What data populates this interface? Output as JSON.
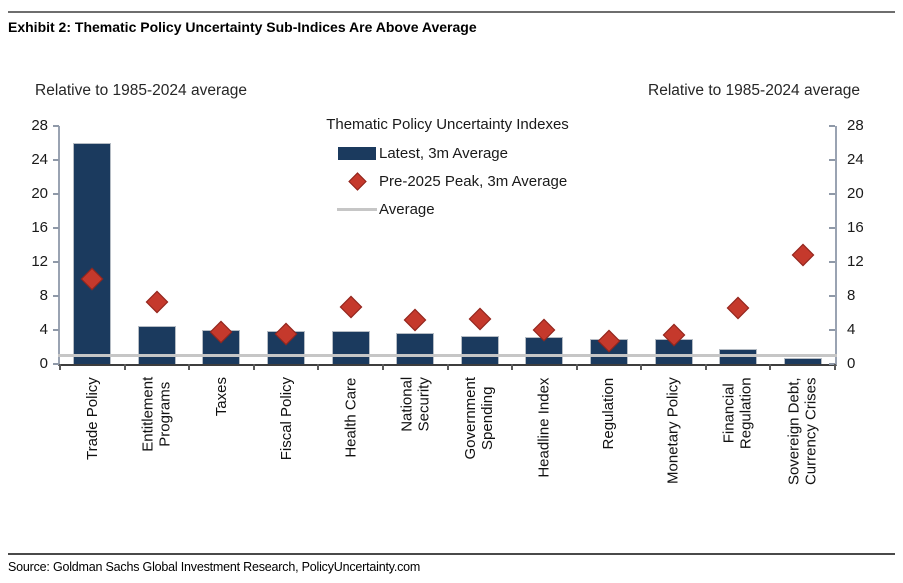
{
  "header": {
    "title": "Exhibit 2: Thematic Policy Uncertainty Sub-Indices Are Above Average"
  },
  "footer": {
    "source": "Source: Goldman Sachs Global Investment Research, PolicyUncertainty.com"
  },
  "chart_data": {
    "type": "bar",
    "title": "Thematic Policy Uncertainty Indexes",
    "axis_note_left": "Relative to 1985-2024 average",
    "axis_note_right": "Relative to 1985-2024 average",
    "categories": [
      "Trade Policy",
      "Entitlement\nPrograms",
      "Taxes",
      "Fiscal Policy",
      "Health Care",
      "National\nSecurity",
      "Government\nSpending",
      "Headline Index",
      "Regulation",
      "Monetary Policy",
      "Financial\nRegulation",
      "Sovereign Debt,\nCurrency Crises"
    ],
    "series": [
      {
        "name": "Latest, 3m Average",
        "type": "bar",
        "values": [
          26.0,
          4.5,
          4.0,
          3.9,
          3.9,
          3.6,
          3.3,
          3.2,
          3.0,
          2.9,
          1.8,
          0.7
        ]
      },
      {
        "name": "Pre-2025 Peak, 3m Average",
        "type": "scatter-diamond",
        "values": [
          10.0,
          7.3,
          3.8,
          3.5,
          6.7,
          5.2,
          5.3,
          4.0,
          2.7,
          3.4,
          6.6,
          12.8
        ]
      },
      {
        "name": "Average",
        "type": "hline",
        "value": 1.0
      }
    ],
    "ylim": [
      0,
      28
    ],
    "yticks": [
      0,
      4,
      8,
      12,
      16,
      20,
      24,
      28
    ],
    "grid": false,
    "legend_position": "top-center-inside",
    "colors": {
      "bar": "#1b3a5e",
      "peak": "#c5392c",
      "peak_border": "#8e241c",
      "average_line": "#c6c6c6",
      "axis": "#9aa3b2",
      "baseline": "#3d3d3d",
      "text": "#1a1a1a"
    }
  }
}
